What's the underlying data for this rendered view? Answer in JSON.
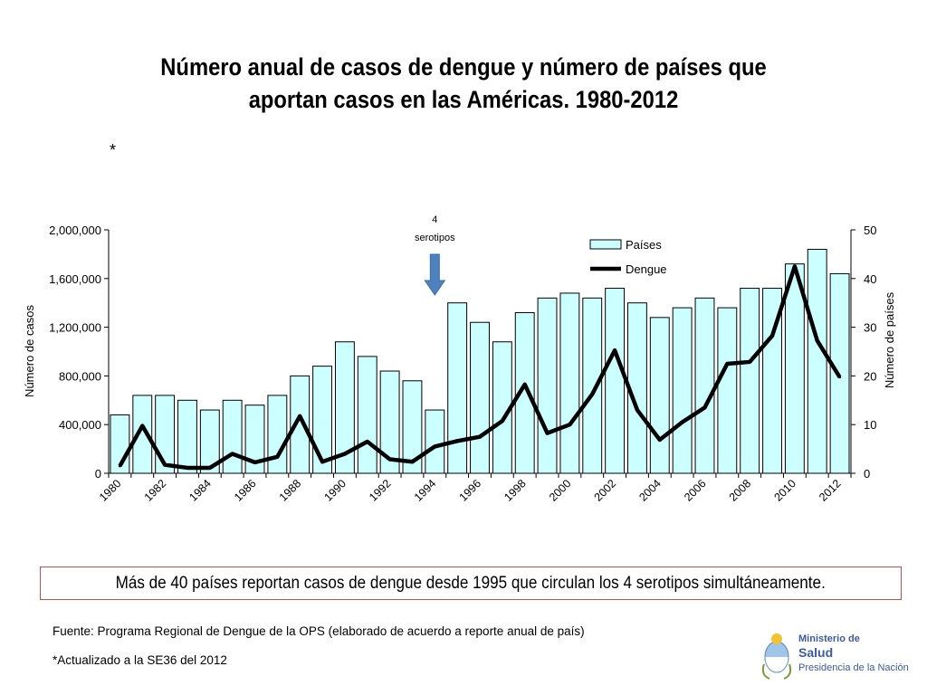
{
  "title": "Número anual de casos de dengue y número de países que aportan casos en las Américas. 1980-2012",
  "asterisk": "*",
  "callout": "Más de 40 países reportan casos de dengue desde 1995 que circulan los 4 serotipos simultáneamente.",
  "source": "Fuente: Programa Regional de Dengue de la OPS (elaborado de acuerdo a reporte anual de país)",
  "footnote": "*Actualizado a la SE36 del 2012",
  "logo": {
    "line1": "Ministerio de",
    "line2": "Salud",
    "line3": "Presidencia de la Nación"
  },
  "colors": {
    "bar_fill": "#ccffff",
    "bar_stroke": "#000000",
    "line": "#000000",
    "arrow": "#4f81bd",
    "callout_border": "#c0504d"
  },
  "chart_data": {
    "type": "bar",
    "x": [
      1980,
      1981,
      1982,
      1983,
      1984,
      1985,
      1986,
      1987,
      1988,
      1989,
      1990,
      1991,
      1992,
      1993,
      1994,
      1995,
      1996,
      1997,
      1998,
      1999,
      2000,
      2001,
      2002,
      2003,
      2004,
      2005,
      2006,
      2007,
      2008,
      2009,
      2010,
      2011,
      2012
    ],
    "xtick_labels": [
      "1980",
      "1982",
      "1984",
      "1986",
      "1988",
      "1990",
      "1992",
      "1994",
      "1996",
      "1998",
      "2000",
      "2002",
      "2004",
      "2006",
      "2008",
      "2010",
      "2012"
    ],
    "series": [
      {
        "name": "Países",
        "type": "bar",
        "axis": "right",
        "values": [
          12,
          16,
          16,
          15,
          13,
          15,
          14,
          16,
          20,
          22,
          27,
          24,
          21,
          19,
          13,
          35,
          31,
          27,
          33,
          36,
          37,
          36,
          38,
          35,
          32,
          34,
          36,
          34,
          38,
          38,
          43,
          46,
          41
        ]
      },
      {
        "name": "Dengue",
        "type": "line",
        "axis": "left",
        "values": [
          60000,
          390000,
          70000,
          45000,
          45000,
          160000,
          90000,
          135000,
          470000,
          95000,
          160000,
          260000,
          115000,
          95000,
          220000,
          265000,
          300000,
          430000,
          730000,
          330000,
          400000,
          650000,
          1010000,
          520000,
          275000,
          420000,
          540000,
          900000,
          915000,
          1130000,
          1700000,
          1090000,
          790000
        ]
      }
    ],
    "y_left": {
      "label": "Número de casos",
      "range": [
        0,
        2000000
      ],
      "ticks": [
        "0",
        "400,000",
        "800,000",
        "1,200,000",
        "1,600,000",
        "2,000,000"
      ]
    },
    "y_right": {
      "label": "Número de países",
      "range": [
        0,
        50
      ],
      "ticks": [
        "0",
        "10",
        "20",
        "30",
        "40",
        "50"
      ]
    },
    "legend": {
      "position": "top-right",
      "entries": [
        "Países",
        "Dengue"
      ]
    },
    "annotation": {
      "text_line1": "4",
      "text_line2": "serotipos",
      "year": 1994
    },
    "grid": false
  }
}
